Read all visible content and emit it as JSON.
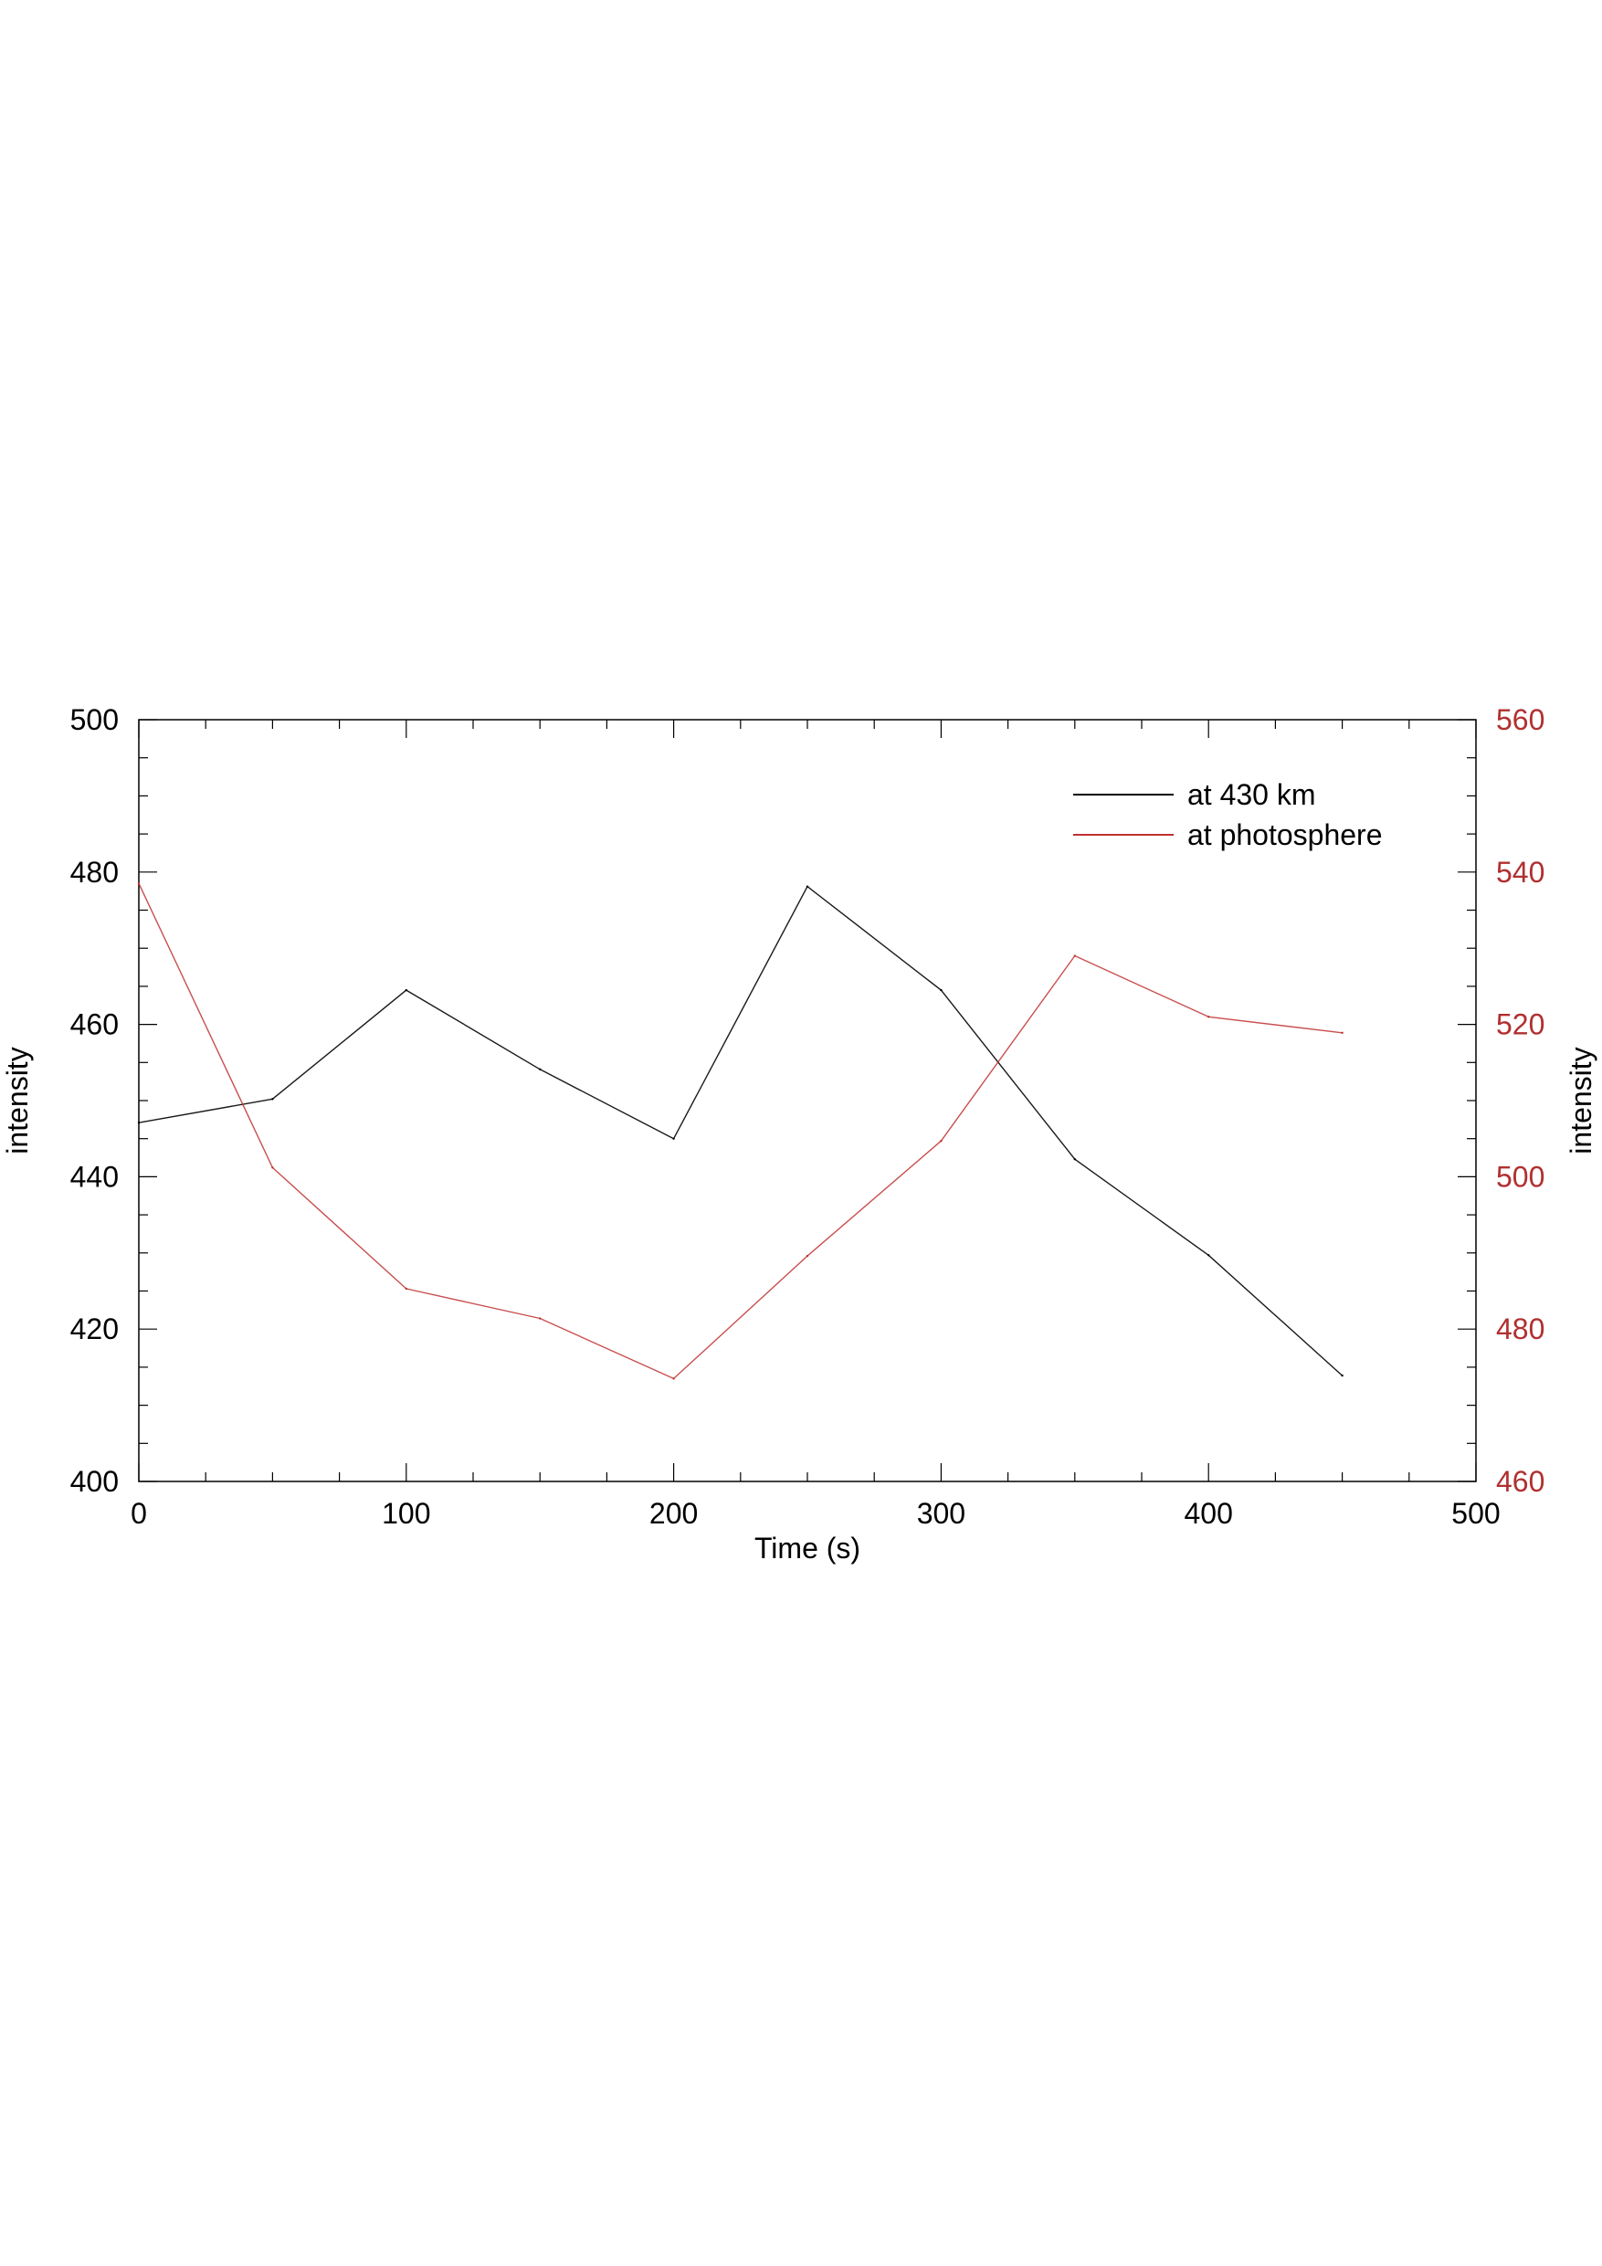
{
  "chart_data": {
    "type": "line",
    "xlabel": "Time (s)",
    "ylabel_left": "intensity",
    "ylabel_right": "intensity",
    "xlim": [
      0,
      500
    ],
    "ylim_left": [
      400,
      500
    ],
    "ylim_right": [
      460,
      560
    ],
    "x_ticks": [
      "0",
      "100",
      "200",
      "300",
      "400",
      "500"
    ],
    "y_ticks_left": [
      "400",
      "420",
      "440",
      "460",
      "480",
      "500"
    ],
    "y_ticks_right": [
      "460",
      "480",
      "500",
      "520",
      "540",
      "560"
    ],
    "grid": false,
    "legend_position": "top-right",
    "x": [
      0,
      50,
      100,
      150,
      200,
      250,
      300,
      350,
      400,
      450
    ],
    "series": [
      {
        "name": "at 430 km",
        "axis": "left",
        "color": "#000000",
        "values": [
          447.1,
          450.2,
          464.5,
          454.1,
          445.0,
          478.1,
          464.5,
          442.3,
          429.7,
          413.9
        ]
      },
      {
        "name": "at photosphere",
        "axis": "right",
        "color": "#c03030",
        "values": [
          538.5,
          501.2,
          485.3,
          481.4,
          473.5,
          489.6,
          504.7,
          529.0,
          521.0,
          518.9
        ]
      }
    ]
  }
}
